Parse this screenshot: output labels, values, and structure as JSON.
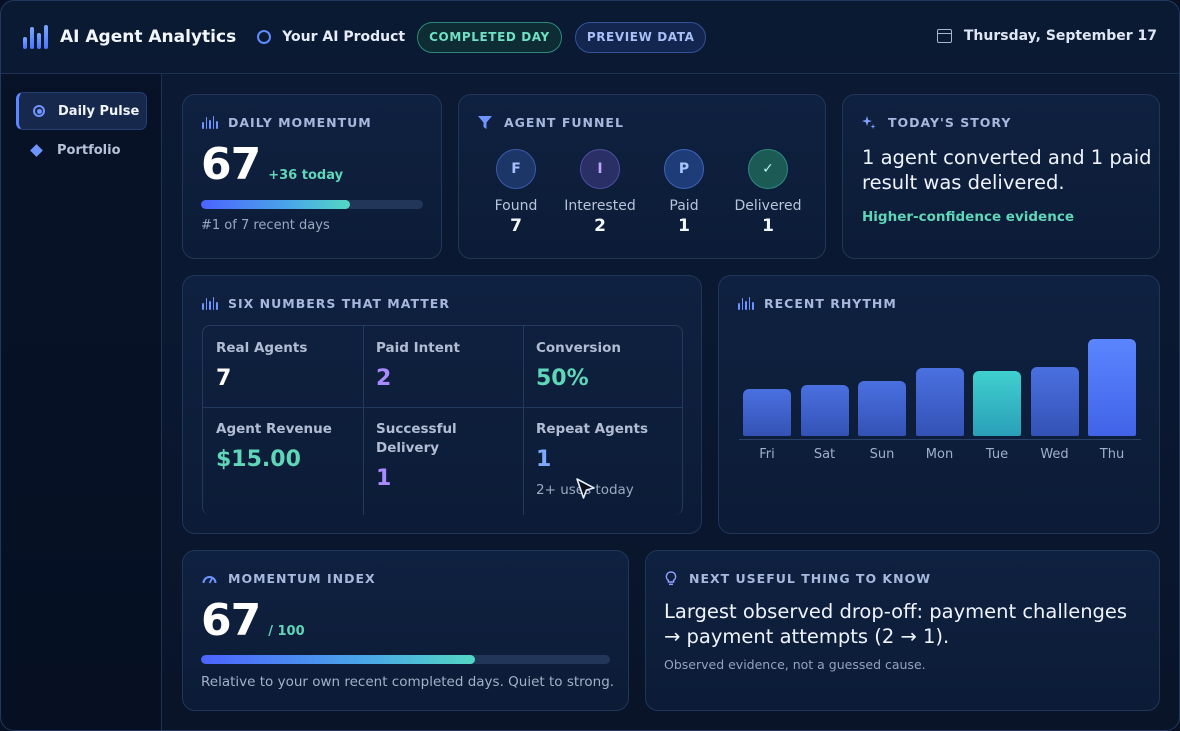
{
  "header": {
    "app_title": "AI Agent Analytics",
    "product_name": "Your AI Product",
    "status_pill": "COMPLETED DAY",
    "preview_pill": "PREVIEW DATA",
    "date": "Thursday, September 17"
  },
  "sidebar": {
    "items": [
      {
        "label": "Daily Pulse",
        "active": true,
        "icon": "target-icon"
      },
      {
        "label": "Portfolio",
        "active": false,
        "icon": "diamond-icon"
      }
    ]
  },
  "momentum": {
    "title": "DAILY MOMENTUM",
    "value": "67",
    "delta": "+36 today",
    "progress": 0.67,
    "rank_text": "#1 of 7 recent days"
  },
  "funnel": {
    "title": "AGENT FUNNEL",
    "stages": [
      {
        "letter": "F",
        "label": "Found",
        "value": "7"
      },
      {
        "letter": "I",
        "label": "Interested",
        "value": "2"
      },
      {
        "letter": "P",
        "label": "Paid",
        "value": "1"
      },
      {
        "letter": "✓",
        "label": "Delivered",
        "value": "1"
      }
    ]
  },
  "story": {
    "title": "TODAY'S STORY",
    "text": "1 agent converted and 1 paid result was delivered.",
    "evidence": "Higher-confidence evidence"
  },
  "six_numbers": {
    "title": "SIX NUMBERS THAT MATTER",
    "cells": [
      {
        "label": "Real Agents",
        "value": "7",
        "sub": ""
      },
      {
        "label": "Paid Intent",
        "value": "2",
        "sub": ""
      },
      {
        "label": "Conversion",
        "value": "50%",
        "sub": ""
      },
      {
        "label": "Agent Revenue",
        "value": "$15.00",
        "sub": ""
      },
      {
        "label": "Successful Delivery",
        "value": "1",
        "sub": ""
      },
      {
        "label": "Repeat Agents",
        "value": "1",
        "sub": "2+ uses today"
      }
    ]
  },
  "rhythm": {
    "title": "RECENT RHYTHM"
  },
  "chart_data": {
    "type": "bar",
    "title": "RECENT RHYTHM",
    "categories": [
      "Fri",
      "Sat",
      "Sun",
      "Mon",
      "Tue",
      "Wed",
      "Thu"
    ],
    "values": [
      35,
      38,
      41,
      51,
      49,
      52,
      73
    ],
    "highlight": "Tue",
    "ylim": [
      0,
      75
    ],
    "grid": false
  },
  "momentum_index": {
    "title": "MOMENTUM INDEX",
    "value": "67",
    "max": "/ 100",
    "progress": 0.67,
    "caption": "Relative to your own recent completed days. Quiet to strong."
  },
  "next": {
    "title": "NEXT USEFUL THING TO KNOW",
    "text": "Largest observed drop-off: payment challenges → payment attempts (2 → 1).",
    "sub": "Observed evidence, not a guessed cause."
  }
}
